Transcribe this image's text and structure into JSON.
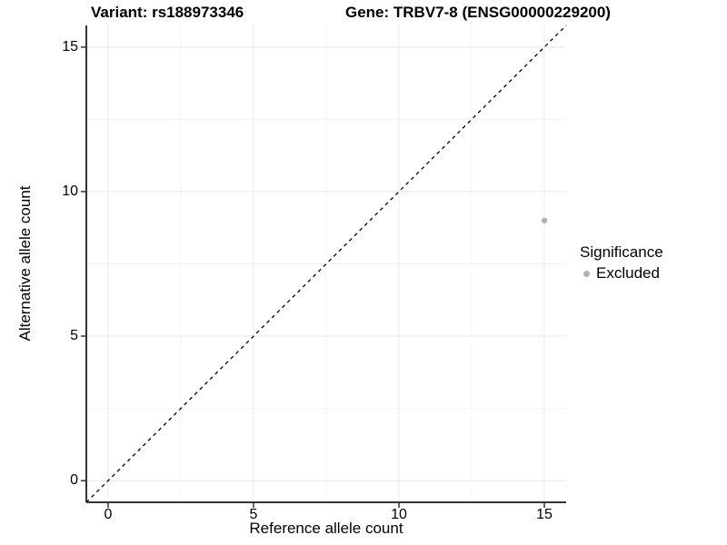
{
  "titles": {
    "left": "Variant: rs188973346",
    "right": "Gene: TRBV7-8 (ENSG00000229200)"
  },
  "legend": {
    "title": "Significance",
    "items": [
      {
        "label": "Excluded",
        "color": "#b3b3b3"
      }
    ]
  },
  "colors": {
    "background": "#ffffff",
    "axis_line": "#333333",
    "tick_mark": "#333333",
    "major_grid": "#e8e8e8",
    "minor_grid": "#f4f4f4",
    "identity_line": "#000000",
    "point": "#b3b3b3",
    "text": "#000000"
  },
  "chart_data": {
    "type": "scatter",
    "title_left": "Variant: rs188973346",
    "title_right": "Gene: TRBV7-8 (ENSG00000229200)",
    "xlabel": "Reference allele count",
    "ylabel": "Alternative allele count",
    "xlim": [
      -0.75,
      15.75
    ],
    "ylim": [
      -0.75,
      15.75
    ],
    "x_ticks": [
      0,
      5,
      10,
      15
    ],
    "y_ticks": [
      0,
      5,
      10,
      15
    ],
    "x_minor_ticks": [
      2.5,
      7.5,
      12.5
    ],
    "y_minor_ticks": [
      2.5,
      7.5,
      12.5
    ],
    "grid": true,
    "legend_position": "right",
    "series": [
      {
        "name": "Excluded",
        "color": "#b3b3b3",
        "points": [
          {
            "x": 15,
            "y": 9
          }
        ]
      }
    ],
    "reference_line": {
      "equation": "y = x",
      "style": "dashed",
      "color": "#000000",
      "from": [
        -0.75,
        -0.75
      ],
      "to": [
        15.75,
        15.75
      ]
    }
  }
}
